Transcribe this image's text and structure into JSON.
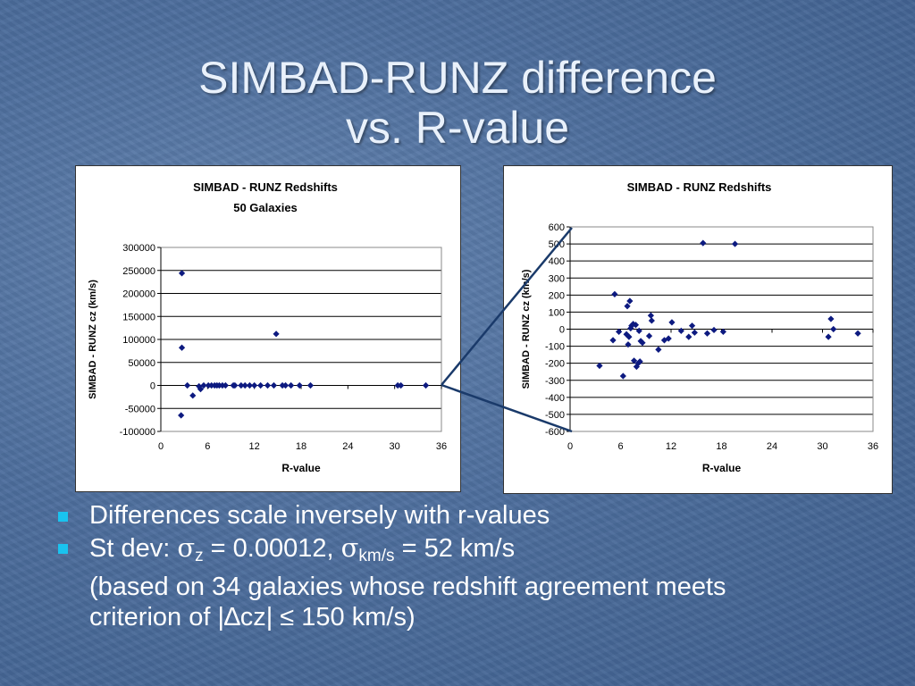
{
  "slide": {
    "title_line1": "SIMBAD-RUNZ difference",
    "title_line2": "vs. R-value",
    "bullets": {
      "b1": "Differences scale inversely with r-values",
      "b2_prefix": "St dev: ",
      "b2_sigma1": "σ",
      "b2_sub1": "z",
      "b2_mid": " = 0.00012, ",
      "b2_sigma2": "σ",
      "b2_sub2": "km/s",
      "b2_suffix": " = 52 km/s",
      "b2_line2": "(based on 34 galaxies whose redshift agreement meets",
      "b2_line3": "criterion of |∆cz| ≤ 150 km/s)"
    },
    "colors": {
      "marker": "#0d1a80",
      "bullet": "#19c3ef",
      "zoom_line": "#1a3a6a"
    }
  },
  "chart_data": [
    {
      "type": "scatter",
      "title": "SIMBAD - RUNZ Redshifts",
      "subtitle": "50 Galaxies",
      "xlabel": "R-value",
      "ylabel": "SIMBAD - RUNZ cz (km/s)",
      "xlim": [
        0,
        36
      ],
      "ylim": [
        -100000,
        300000
      ],
      "xticks": [
        0,
        6,
        12,
        18,
        24,
        30,
        36
      ],
      "yticks": [
        -100000,
        -50000,
        0,
        50000,
        100000,
        150000,
        200000,
        250000,
        300000
      ],
      "xtick_labels": [
        "0",
        "6",
        "12",
        "18",
        "24",
        "30",
        "36"
      ],
      "ytick_labels": [
        "-100000",
        "-50000",
        "0",
        "50000",
        "100000",
        "150000",
        "200000",
        "250000",
        "300000"
      ],
      "grid": "horizontal",
      "points": [
        [
          2.7,
          244000
        ],
        [
          2.7,
          82000
        ],
        [
          2.6,
          -65000
        ],
        [
          3.4,
          0
        ],
        [
          4.1,
          -22000
        ],
        [
          4.9,
          -2000
        ],
        [
          5.1,
          -8000
        ],
        [
          5.5,
          0
        ],
        [
          6.1,
          0
        ],
        [
          6.5,
          0
        ],
        [
          6.9,
          0
        ],
        [
          7.2,
          0
        ],
        [
          7.5,
          0
        ],
        [
          7.9,
          0
        ],
        [
          8.3,
          0
        ],
        [
          9.3,
          0
        ],
        [
          9.5,
          0
        ],
        [
          10.3,
          0
        ],
        [
          10.8,
          0
        ],
        [
          11.4,
          0
        ],
        [
          12.0,
          0
        ],
        [
          12.8,
          0
        ],
        [
          13.7,
          0
        ],
        [
          14.5,
          0
        ],
        [
          14.8,
          112000
        ],
        [
          15.6,
          0
        ],
        [
          16.0,
          0
        ],
        [
          16.7,
          0
        ],
        [
          17.8,
          0
        ],
        [
          19.2,
          0
        ],
        [
          30.4,
          0
        ],
        [
          30.8,
          0
        ],
        [
          34.0,
          0
        ]
      ]
    },
    {
      "type": "scatter",
      "title": "SIMBAD - RUNZ Redshifts",
      "xlabel": "R-value",
      "ylabel": "SIMBAD - RUNZ cz (km/s)",
      "xlim": [
        0,
        36
      ],
      "ylim": [
        -600,
        600
      ],
      "xticks": [
        0,
        6,
        12,
        18,
        24,
        30,
        36
      ],
      "yticks": [
        -600,
        -500,
        -400,
        -300,
        -200,
        -100,
        0,
        100,
        200,
        300,
        400,
        500,
        600
      ],
      "xtick_labels": [
        "0",
        "6",
        "12",
        "18",
        "24",
        "30",
        "36"
      ],
      "ytick_labels": [
        "-600",
        "-500",
        "-400",
        "-300",
        "-200",
        "-100",
        "0",
        "100",
        "200",
        "300",
        "400",
        "500",
        "600"
      ],
      "grid": "horizontal",
      "points": [
        [
          3.5,
          -215
        ],
        [
          5.1,
          -65
        ],
        [
          5.3,
          205
        ],
        [
          5.8,
          -15
        ],
        [
          6.3,
          -275
        ],
        [
          6.7,
          -30
        ],
        [
          6.8,
          135
        ],
        [
          6.9,
          -90
        ],
        [
          7.0,
          -45
        ],
        [
          7.1,
          165
        ],
        [
          7.3,
          20
        ],
        [
          7.2,
          5
        ],
        [
          7.5,
          30
        ],
        [
          7.6,
          -185
        ],
        [
          7.8,
          25
        ],
        [
          7.9,
          -220
        ],
        [
          8.1,
          -200
        ],
        [
          8.3,
          -190
        ],
        [
          8.2,
          -10
        ],
        [
          8.4,
          -70
        ],
        [
          8.6,
          -80
        ],
        [
          9.4,
          -40
        ],
        [
          9.6,
          80
        ],
        [
          9.7,
          50
        ],
        [
          10.5,
          -120
        ],
        [
          11.2,
          -65
        ],
        [
          11.7,
          -55
        ],
        [
          12.1,
          40
        ],
        [
          13.2,
          -10
        ],
        [
          14.1,
          -45
        ],
        [
          14.5,
          20
        ],
        [
          14.8,
          -20
        ],
        [
          15.8,
          505
        ],
        [
          16.3,
          -25
        ],
        [
          17.1,
          -5
        ],
        [
          18.2,
          -15
        ],
        [
          19.6,
          500
        ],
        [
          30.7,
          -45
        ],
        [
          31.0,
          60
        ],
        [
          31.3,
          0
        ],
        [
          34.2,
          -25
        ]
      ]
    }
  ]
}
